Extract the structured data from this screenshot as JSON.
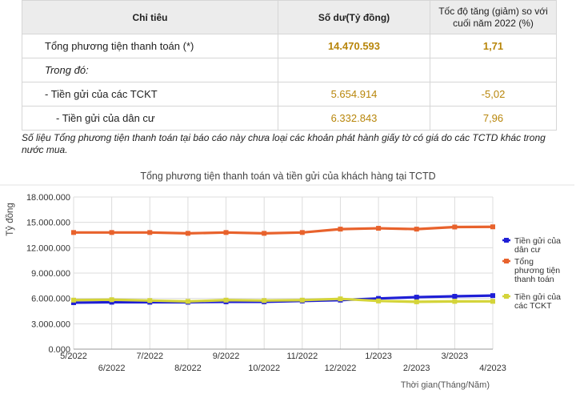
{
  "table": {
    "headers": [
      "Chỉ tiêu",
      "Số dư(Tỷ đồng)",
      "Tốc độ tăng (giảm) so với cuối năm 2022 (%)"
    ],
    "rows": [
      {
        "label": "Tổng phương tiện thanh toán (*)",
        "value": "14.470.593",
        "change": "1,71"
      },
      {
        "label": "Trong đó:",
        "value": "",
        "change": ""
      },
      {
        "label": "- Tiền gửi của các TCKT",
        "value": "5.654.914",
        "change": "-5,02"
      },
      {
        "label": "- Tiền gửi của dân cư",
        "value": "6.332.843",
        "change": "7,96"
      }
    ]
  },
  "note": "Số liệu Tổng phương tiện thanh toán tại báo cáo này chưa loại các khoản phát hành giấy tờ có giá do các TCTD khác trong nước mua.",
  "chart_data": {
    "type": "line",
    "title": "Tổng phương tiện thanh toán và tiền gửi của khách hàng tại TCTD",
    "ylabel": "Tỷ đồng",
    "xlabel": "Thời gian(Tháng/Năm)",
    "ylim": [
      0,
      18000000
    ],
    "yticks": [
      "18.000.000",
      "15.000.000",
      "12.000.000",
      "9.000.000",
      "6.000.000",
      "3.000.000",
      "0.000"
    ],
    "ytick_values": [
      18000000,
      15000000,
      12000000,
      9000000,
      6000000,
      3000000,
      0
    ],
    "categories": [
      "5/2022",
      "6/2022",
      "7/2022",
      "8/2022",
      "9/2022",
      "10/2022",
      "11/2022",
      "12/2022",
      "1/2023",
      "2/2023",
      "3/2023",
      "4/2023"
    ],
    "grid": true,
    "legend_position": "right",
    "series": [
      {
        "name": "Tiền gửi của dân cư",
        "color": "#1f1fd6",
        "values": [
          5500000,
          5550000,
          5550000,
          5550000,
          5600000,
          5600000,
          5700000,
          5800000,
          6000000,
          6150000,
          6250000,
          6332843
        ]
      },
      {
        "name": "Tổng phương tiện thanh toán",
        "color": "#e8622c",
        "values": [
          13800000,
          13800000,
          13800000,
          13700000,
          13800000,
          13700000,
          13800000,
          14200000,
          14300000,
          14200000,
          14450000,
          14470593
        ]
      },
      {
        "name": "Tiền gửi của các TCKT",
        "color": "#d4d43a",
        "values": [
          5800000,
          5850000,
          5750000,
          5650000,
          5800000,
          5750000,
          5800000,
          5950000,
          5700000,
          5600000,
          5650000,
          5654914
        ]
      }
    ],
    "legend_labels": [
      [
        "Tiền gửi của",
        "dân cư"
      ],
      [
        "Tổng",
        "phương tiện",
        "thanh toán"
      ],
      [
        "Tiền gửi của",
        "các TCKT"
      ]
    ]
  }
}
